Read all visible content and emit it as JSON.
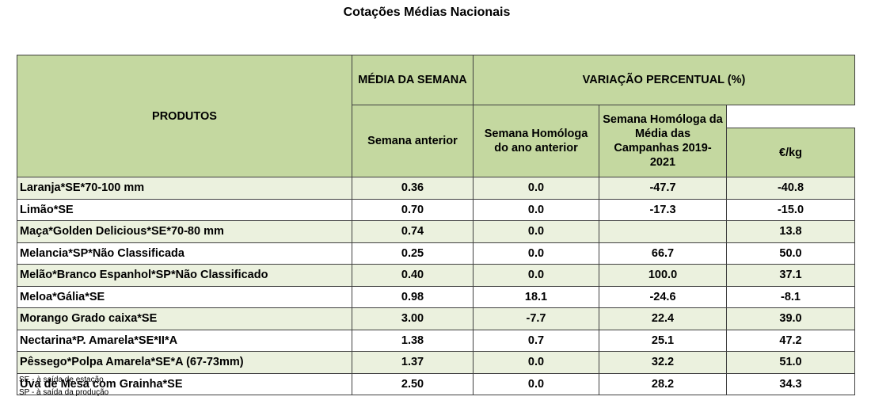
{
  "title": "Cotações Médias Nacionais",
  "table": {
    "headers": {
      "products": "PRODUTOS",
      "week_average": "MÉDIA DA SEMANA",
      "unit": "€/kg",
      "variation_group": "VARIAÇÃO PERCENTUAL (%)",
      "previous_week": "Semana anterior",
      "homologous_week_prev_year": "Semana Homóloga do ano anterior",
      "homologous_week_campaigns": "Semana Homóloga da Média das Campanhas 2019-2021"
    },
    "rows": [
      {
        "product": "Laranja*SE*70-100 mm",
        "price": "0.36",
        "prev_week": "0.0",
        "prev_year": "-47.7",
        "campaigns": "-40.8"
      },
      {
        "product": "Limão*SE",
        "price": "0.70",
        "prev_week": "0.0",
        "prev_year": "-17.3",
        "campaigns": "-15.0"
      },
      {
        "product": "Maça*Golden Delicious*SE*70-80 mm",
        "price": "0.74",
        "prev_week": "0.0",
        "prev_year": "",
        "campaigns": "13.8"
      },
      {
        "product": "Melancia*SP*Não Classificada",
        "price": "0.25",
        "prev_week": "0.0",
        "prev_year": "66.7",
        "campaigns": "50.0"
      },
      {
        "product": "Melão*Branco Espanhol*SP*Não Classificado",
        "price": "0.40",
        "prev_week": "0.0",
        "prev_year": "100.0",
        "campaigns": "37.1"
      },
      {
        "product": "Meloa*Gália*SE",
        "price": "0.98",
        "prev_week": "18.1",
        "prev_year": "-24.6",
        "campaigns": "-8.1"
      },
      {
        "product": "Morango Grado caixa*SE",
        "price": "3.00",
        "prev_week": "-7.7",
        "prev_year": "22.4",
        "campaigns": "39.0"
      },
      {
        "product": "Nectarina*P. Amarela*SE*II*A",
        "price": "1.38",
        "prev_week": "0.7",
        "prev_year": "25.1",
        "campaigns": "47.2"
      },
      {
        "product": "Pêssego*Polpa Amarela*SE*A (67-73mm)",
        "price": "1.37",
        "prev_week": "0.0",
        "prev_year": "32.2",
        "campaigns": "51.0"
      },
      {
        "product": "Uva de Mesa com Grainha*SE",
        "price": "2.50",
        "prev_week": "0.0",
        "prev_year": "28.2",
        "campaigns": "34.3"
      }
    ]
  },
  "footnotes": [
    "SE - à saída de estação",
    "SP - à saída da produção"
  ],
  "colors": {
    "header_bg": "#c4d8a0",
    "row_shaded": "#ebf1de",
    "row_plain": "#ffffff",
    "border": "#404040"
  }
}
